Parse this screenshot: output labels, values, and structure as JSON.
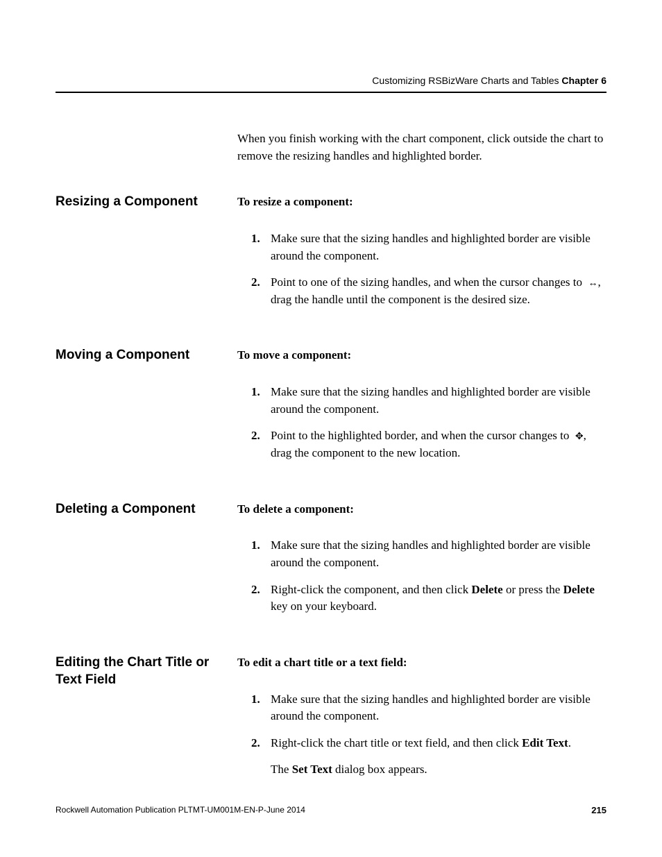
{
  "header": {
    "breadcrumb": "Customizing RSBizWare Charts and Tables",
    "chapter": "Chapter 6"
  },
  "intro": {
    "text": "When you finish working with the chart component, click outside the chart to remove the resizing handles and highlighted border."
  },
  "sections": [
    {
      "heading": "Resizing a Component",
      "lead": "To resize a component:",
      "steps": [
        {
          "num": "1.",
          "text": "Make sure that the sizing handles and highlighted border are visible around the component."
        },
        {
          "num": "2.",
          "pre": "Point to one of the sizing handles, and when the cursor changes to ",
          "icon": "↔",
          "post": ", drag the handle until the component is the desired size."
        }
      ]
    },
    {
      "heading": "Moving a Component",
      "lead": "To move a component:",
      "steps": [
        {
          "num": "1.",
          "text": "Make sure that the sizing handles and highlighted border are visible around the component."
        },
        {
          "num": "2.",
          "pre": "Point to the highlighted border, and when the cursor changes to ",
          "icon": "✥",
          "post": ", drag the component to the new location."
        }
      ]
    },
    {
      "heading": "Deleting a Component",
      "lead": "To delete a component:",
      "steps": [
        {
          "num": "1.",
          "text": "Make sure that the sizing handles and highlighted border are visible around the component."
        },
        {
          "num": "2.",
          "pre": "Right-click the component, and then click ",
          "bold1": "Delete",
          "mid": " or press the ",
          "bold2": "Delete",
          "post": " key on your keyboard."
        }
      ]
    },
    {
      "heading": "Editing the Chart Title or Text Field",
      "lead": "To edit a chart title or a text field:",
      "steps": [
        {
          "num": "1.",
          "text": "Make sure that the sizing handles and highlighted border are visible around the component."
        },
        {
          "num": "2.",
          "pre": "Right-click the chart title or text field, and then click ",
          "bold1": "Edit Text",
          "post": "."
        }
      ],
      "trailing_pre": "The ",
      "trailing_bold": "Set Text",
      "trailing_post": " dialog box appears."
    }
  ],
  "footer": {
    "pub": "Rockwell Automation Publication PLTMT-UM001M-EN-P-June 2014",
    "page": "215"
  }
}
